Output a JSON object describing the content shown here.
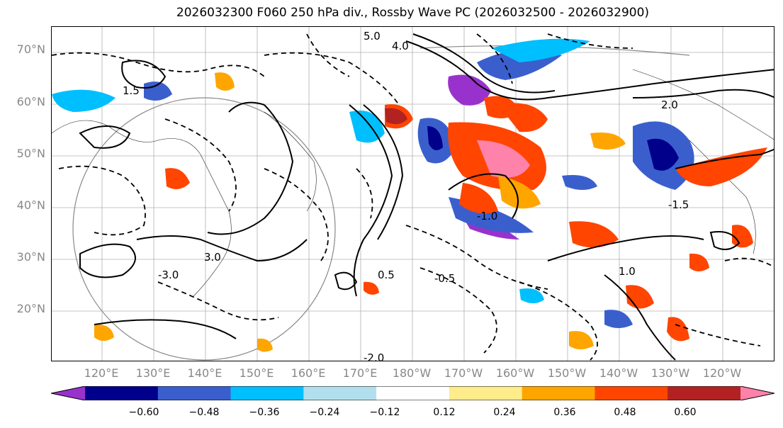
{
  "title": "2026032300 F060 250 hPa div., Rossby Wave PC (2026032500 - 2026032900)",
  "lat_labels": [
    "70°N",
    "60°N",
    "50°N",
    "40°N",
    "30°N",
    "20°N"
  ],
  "lon_labels": [
    "120°E",
    "130°E",
    "140°E",
    "150°E",
    "160°E",
    "170°E",
    "180°W",
    "170°W",
    "160°W",
    "150°W",
    "140°W",
    "130°W",
    "120°W"
  ],
  "colorbar": {
    "colors": [
      "#9932cc",
      "#00008b",
      "#3a5fcd",
      "#00bfff",
      "#b2dfee",
      "#ffffff",
      "#ffec8b",
      "#ffa500",
      "#ff4500",
      "#b22222",
      "#ff82ab"
    ],
    "ticks": [
      "−0.60",
      "−0.48",
      "−0.36",
      "−0.24",
      "−0.12",
      "0.12",
      "0.24",
      "0.36",
      "0.48",
      "0.60"
    ]
  },
  "contour_labels": [
    "5.0",
    "4.0",
    "3.0",
    "2.0",
    "1.5",
    "1.0",
    "0.5",
    "-0.5",
    "-1.0",
    "-1.5",
    "-2.0",
    "-3.0"
  ],
  "colors": {
    "axis": "#000000",
    "tick_text": "#888888",
    "grid": "#b0b0b0"
  }
}
